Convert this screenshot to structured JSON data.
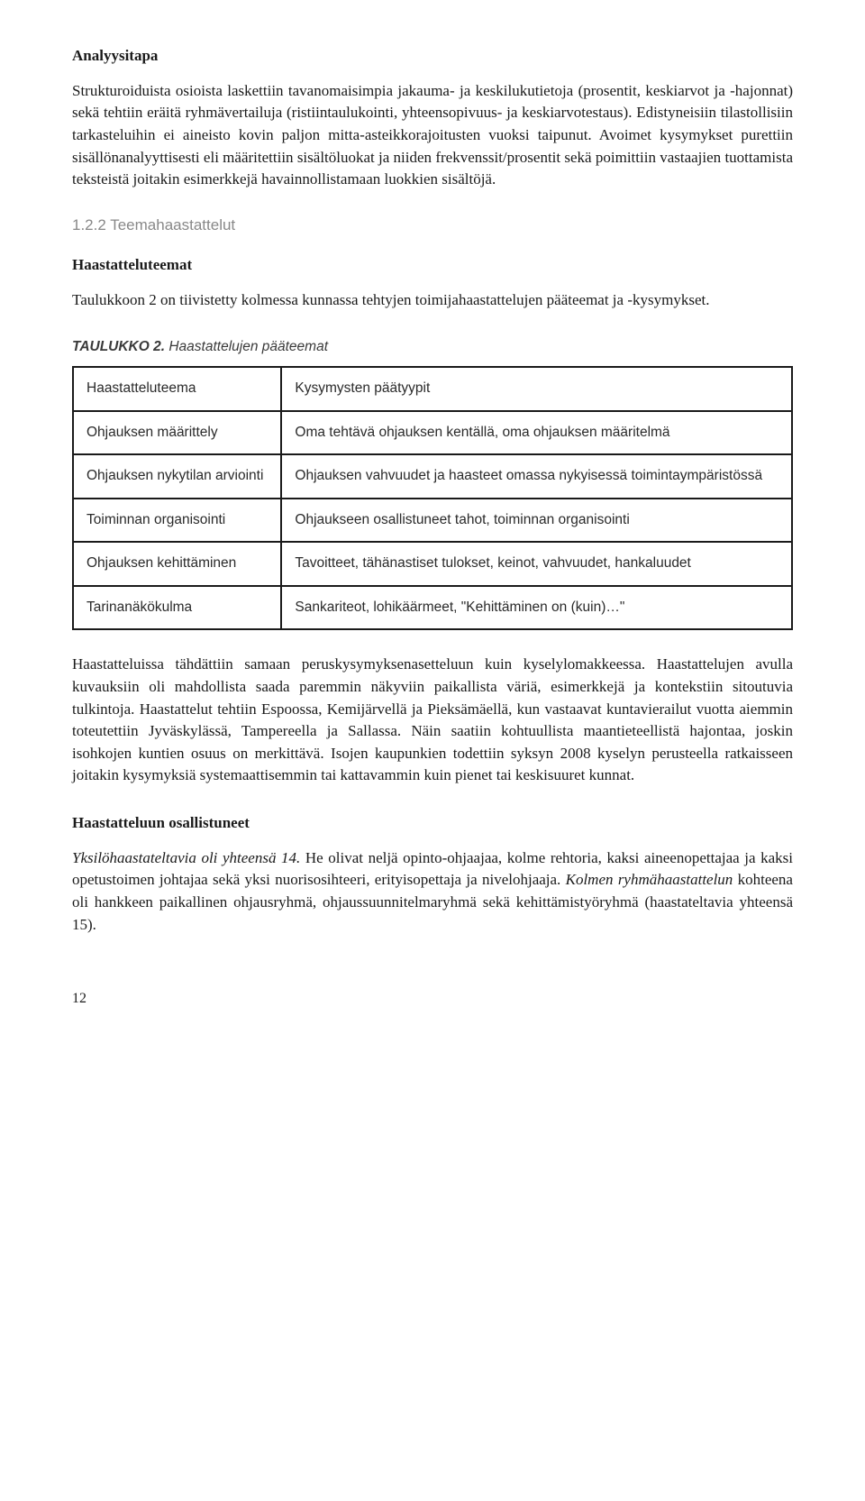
{
  "h1": "Analyysitapa",
  "p1": "Strukturoiduista osioista laskettiin tavanomaisimpia jakauma- ja keskilukutietoja (prosentit, keskiarvot ja -hajonnat) sekä tehtiin eräitä ryhmävertailuja (ristiintaulukointi, yhteensopivuus- ja keskiarvotestaus). Edistyneisiin tilastollisiin tarkasteluihin ei aineisto kovin paljon mitta-asteikkorajoitusten vuoksi taipunut. Avoimet kysymykset purettiin sisällönanalyyttisesti eli määritettiin sisältöluokat ja niiden frekvenssit/prosentit sekä poimittiin vastaajien tuottamista teksteistä joitakin esimerkkejä havainnollistamaan luokkien sisältöjä.",
  "subsection": "1.2.2 Teemahaastattelut",
  "h2": "Haastatteluteemat",
  "p2": "Taulukkoon 2 on tiivistetty kolmessa kunnassa tehtyjen toimijahaastattelujen pääteemat ja -kysymykset.",
  "table_caption_label": "TAULUKKO 2.",
  "table_caption_title": " Haastattelujen pääteemat",
  "table": {
    "columns": [
      "Haastatteluteema",
      "Kysymysten päätyypit"
    ],
    "rows": [
      [
        "Ohjauksen määrittely",
        "Oma tehtävä ohjauksen kentällä, oma ohjauksen määritelmä"
      ],
      [
        "Ohjauksen nykytilan arviointi",
        "Ohjauksen vahvuudet ja haasteet omassa nykyisessä toimintaympäristössä"
      ],
      [
        "Toiminnan organisointi",
        "Ohjaukseen osallistuneet tahot, toiminnan organisointi"
      ],
      [
        "Ohjauksen kehittäminen",
        "Tavoitteet, tähänastiset tulokset, keinot, vahvuudet, hankaluudet"
      ],
      [
        "Tarinanäkökulma",
        "Sankariteot, lohikäärmeet, \"Kehittäminen on (kuin)…\""
      ]
    ]
  },
  "p3": "Haastatteluissa tähdättiin samaan peruskysymyksenasetteluun kuin kyselylomakkeessa. Haastattelujen avulla kuvauksiin oli mahdollista saada paremmin näkyviin paikallista väriä, esimerkkejä ja kontekstiin sitoutuvia tulkintoja. Haastattelut tehtiin Espoossa, Kemijärvellä ja Pieksämäellä, kun vastaavat kuntavierailut vuotta aiemmin toteutettiin Jyväskylässä, Tampereella ja Sallassa. Näin saatiin kohtuullista maantieteellistä hajontaa, joskin isohkojen kuntien osuus on merkittävä. Isojen kaupunkien todettiin syksyn 2008 kyselyn perusteella ratkaisseen joitakin kysymyksiä systemaattisemmin tai kattavammin kuin pienet tai keskisuuret kunnat.",
  "h3": "Haastatteluun osallistuneet",
  "p4_italic1": "Yksilöhaastateltavia oli yhteensä 14.",
  "p4_a": " He olivat neljä opinto-ohjaajaa, kolme rehtoria, kaksi aineenopettajaa ja kaksi opetustoimen johtajaa sekä yksi nuorisosihteeri, erityisopettaja ja nivelohjaaja. ",
  "p4_italic2": "Kolmen ryhmähaastattelun",
  "p4_b": " kohteena oli hankkeen paikallinen ohjausryhmä, ohjaussuunnitelmaryhmä sekä kehittämistyöryhmä (haastateltavia yhteensä 15).",
  "page_number": "12"
}
